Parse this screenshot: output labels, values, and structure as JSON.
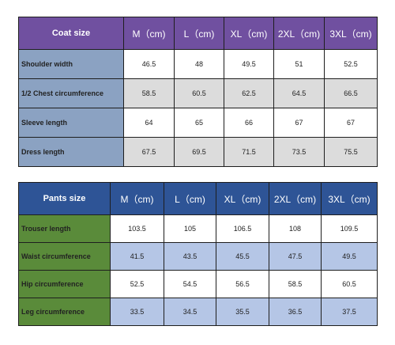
{
  "coat": {
    "header": [
      "Coat size",
      "M（cm)",
      "L（cm)",
      "XL（cm)",
      "2XL（cm)",
      "3XL（cm)"
    ],
    "rows": [
      {
        "label": "Shoulder width",
        "values": [
          "46.5",
          "48",
          "49.5",
          "51",
          "52.5"
        ]
      },
      {
        "label": "1/2 Chest circumference",
        "values": [
          "58.5",
          "60.5",
          "62.5",
          "64.5",
          "66.5"
        ]
      },
      {
        "label": "Sleeve length",
        "values": [
          "64",
          "65",
          "66",
          "67",
          "67"
        ]
      },
      {
        "label": "Dress length",
        "values": [
          "67.5",
          "69.5",
          "71.5",
          "73.5",
          "75.5"
        ]
      }
    ]
  },
  "pants": {
    "header": [
      "Pants size",
      "M（cm)",
      "L（cm)",
      "XL（cm)",
      "2XL（cm)",
      "3XL（cm)"
    ],
    "rows": [
      {
        "label": "Trouser length",
        "values": [
          "103.5",
          "105",
          "106.5",
          "108",
          "109.5"
        ]
      },
      {
        "label": "Waist circumference",
        "values": [
          "41.5",
          "43.5",
          "45.5",
          "47.5",
          "49.5"
        ]
      },
      {
        "label": "Hip circumference",
        "values": [
          "52.5",
          "54.5",
          "56.5",
          "58.5",
          "60.5"
        ]
      },
      {
        "label": "Leg circumference",
        "values": [
          "33.5",
          "34.5",
          "35.5",
          "36.5",
          "37.5"
        ]
      }
    ]
  },
  "colors": {
    "coat_header": "#7050a0",
    "coat_label": "#8ba2c2",
    "coat_alt_row": "#dcdcdc",
    "pants_header": "#2e5496",
    "pants_label": "#5a8b3a",
    "pants_alt_row": "#b5c6e6"
  }
}
